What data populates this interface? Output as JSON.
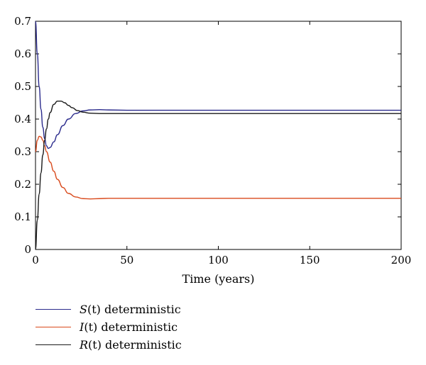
{
  "chart_data": {
    "type": "line",
    "title": "",
    "xlabel": "Time (years)",
    "ylabel": "",
    "xlim": [
      0,
      200
    ],
    "ylim": [
      0,
      0.7
    ],
    "xticks": [
      0,
      50,
      100,
      150,
      200
    ],
    "yticks": [
      0,
      0.1,
      0.2,
      0.3,
      0.4,
      0.5,
      0.6,
      0.7
    ],
    "xtick_labels": [
      "0",
      "50",
      "100",
      "150",
      "200"
    ],
    "ytick_labels": [
      "0",
      "0.1",
      "0.2",
      "0.3",
      "0.4",
      "0.5",
      "0.6",
      "0.7"
    ],
    "grid": false,
    "legend_position": "below",
    "series": [
      {
        "name": "S(t) deterministic",
        "var": "S",
        "arg": "(t)",
        "suffix": " deterministic",
        "color": "#2a2a8c",
        "x": [
          0,
          1,
          2,
          3,
          4,
          5,
          6,
          7,
          8,
          10,
          12,
          15,
          18,
          22,
          26,
          30,
          35,
          40,
          50,
          60,
          80,
          100,
          150,
          200
        ],
        "y": [
          0.7,
          0.6,
          0.5,
          0.43,
          0.375,
          0.34,
          0.318,
          0.31,
          0.313,
          0.33,
          0.352,
          0.38,
          0.4,
          0.417,
          0.425,
          0.428,
          0.429,
          0.428,
          0.427,
          0.427,
          0.427,
          0.427,
          0.427,
          0.427
        ]
      },
      {
        "name": "I(t) deterministic",
        "var": "I",
        "arg": "(t)",
        "suffix": " deterministic",
        "color": "#d94a1c",
        "x": [
          0,
          1,
          2,
          3,
          4,
          5,
          6,
          8,
          10,
          12,
          15,
          18,
          22,
          26,
          30,
          35,
          40,
          50,
          60,
          80,
          100,
          150,
          200
        ],
        "y": [
          0.3,
          0.335,
          0.347,
          0.345,
          0.335,
          0.318,
          0.3,
          0.268,
          0.24,
          0.215,
          0.19,
          0.172,
          0.161,
          0.156,
          0.155,
          0.156,
          0.157,
          0.157,
          0.157,
          0.157,
          0.157,
          0.157,
          0.157
        ]
      },
      {
        "name": "R(t) deterministic",
        "var": "R",
        "arg": "(t)",
        "suffix": " deterministic",
        "color": "#1a1a1a",
        "x": [
          0,
          1,
          2,
          3,
          4,
          5,
          6,
          7,
          8,
          10,
          12,
          14,
          16,
          18,
          20,
          23,
          26,
          30,
          35,
          40,
          50,
          60,
          80,
          100,
          150,
          200
        ],
        "y": [
          0.0,
          0.09,
          0.17,
          0.235,
          0.29,
          0.335,
          0.37,
          0.4,
          0.42,
          0.445,
          0.455,
          0.455,
          0.45,
          0.442,
          0.435,
          0.426,
          0.421,
          0.418,
          0.417,
          0.417,
          0.417,
          0.417,
          0.417,
          0.417,
          0.417,
          0.417
        ]
      }
    ]
  }
}
